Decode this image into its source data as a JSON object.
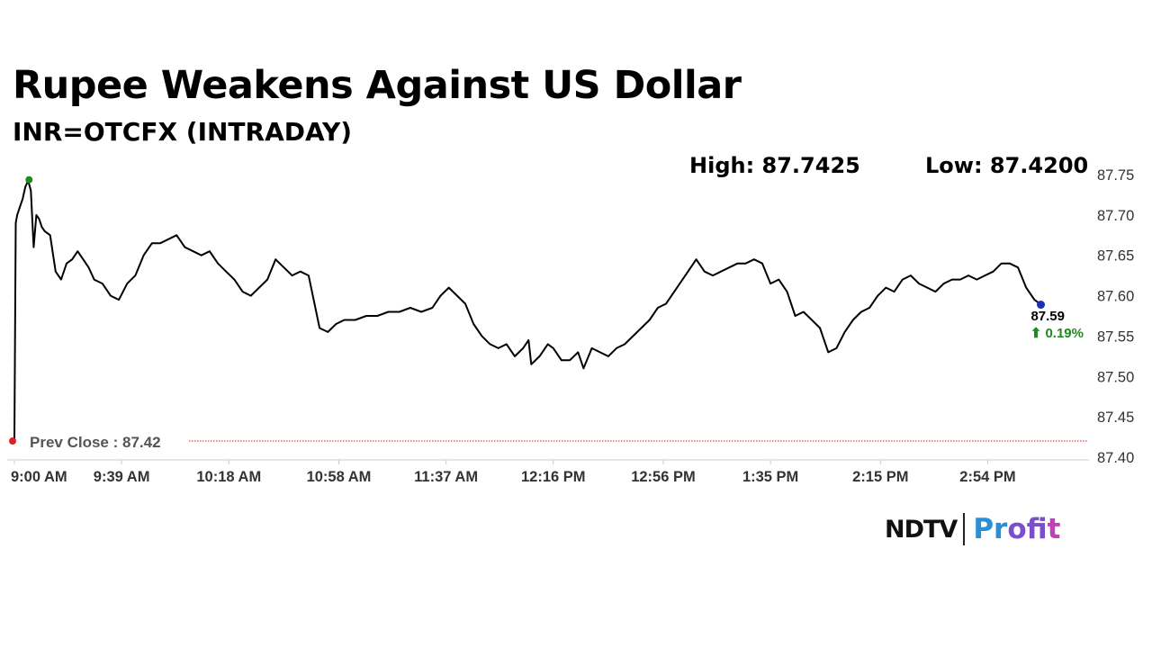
{
  "header": {
    "title": "Rupee Weakens Against US Dollar",
    "subtitle": "INR=OTCFX (INTRADAY)",
    "high_text": "High: 87.7425",
    "low_text": "Low: 87.4200"
  },
  "chart_data": {
    "type": "line",
    "ylim": [
      87.4,
      87.75
    ],
    "y_ticks": [
      "87.75",
      "87.70",
      "87.65",
      "87.60",
      "87.55",
      "87.50",
      "87.45",
      "87.40"
    ],
    "x_ticks": [
      "9:00 AM",
      "9:39 AM",
      "10:18 AM",
      "10:58 AM",
      "11:37 AM",
      "12:16 PM",
      "12:56 PM",
      "1:35 PM",
      "2:15 PM",
      "2:54 PM"
    ],
    "x_tick_minutes": [
      0,
      39,
      78,
      118,
      157,
      196,
      236,
      275,
      315,
      354
    ],
    "series": [
      {
        "points": [
          [
            0,
            87.42
          ],
          [
            0.5,
            87.69
          ],
          [
            1,
            87.7
          ],
          [
            2,
            87.71
          ],
          [
            3,
            87.72
          ],
          [
            4,
            87.735
          ],
          [
            5,
            87.7425
          ],
          [
            6,
            87.73
          ],
          [
            7,
            87.66
          ],
          [
            8,
            87.7
          ],
          [
            9,
            87.695
          ],
          [
            10,
            87.685
          ],
          [
            11,
            87.68
          ],
          [
            13,
            87.675
          ],
          [
            15,
            87.63
          ],
          [
            17,
            87.62
          ],
          [
            19,
            87.64
          ],
          [
            21,
            87.645
          ],
          [
            23,
            87.655
          ],
          [
            25,
            87.645
          ],
          [
            27,
            87.635
          ],
          [
            29,
            87.62
          ],
          [
            32,
            87.615
          ],
          [
            35,
            87.6
          ],
          [
            38,
            87.595
          ],
          [
            41,
            87.615
          ],
          [
            44,
            87.625
          ],
          [
            47,
            87.65
          ],
          [
            50,
            87.665
          ],
          [
            53,
            87.665
          ],
          [
            56,
            87.67
          ],
          [
            59,
            87.675
          ],
          [
            62,
            87.66
          ],
          [
            65,
            87.655
          ],
          [
            68,
            87.65
          ],
          [
            71,
            87.655
          ],
          [
            74,
            87.64
          ],
          [
            77,
            87.63
          ],
          [
            80,
            87.62
          ],
          [
            83,
            87.605
          ],
          [
            86,
            87.6
          ],
          [
            89,
            87.61
          ],
          [
            92,
            87.62
          ],
          [
            95,
            87.645
          ],
          [
            98,
            87.635
          ],
          [
            101,
            87.625
          ],
          [
            104,
            87.63
          ],
          [
            107,
            87.625
          ],
          [
            111,
            87.56
          ],
          [
            114,
            87.555
          ],
          [
            117,
            87.565
          ],
          [
            120,
            87.57
          ],
          [
            124,
            87.57
          ],
          [
            128,
            87.575
          ],
          [
            132,
            87.575
          ],
          [
            136,
            87.58
          ],
          [
            140,
            87.58
          ],
          [
            144,
            87.585
          ],
          [
            148,
            87.58
          ],
          [
            152,
            87.585
          ],
          [
            155,
            87.6
          ],
          [
            158,
            87.61
          ],
          [
            161,
            87.6
          ],
          [
            164,
            87.59
          ],
          [
            167,
            87.565
          ],
          [
            170,
            87.55
          ],
          [
            173,
            87.54
          ],
          [
            176,
            87.535
          ],
          [
            179,
            87.54
          ],
          [
            182,
            87.525
          ],
          [
            185,
            87.535
          ],
          [
            187,
            87.545
          ],
          [
            188,
            87.515
          ],
          [
            191,
            87.525
          ],
          [
            194,
            87.54
          ],
          [
            196,
            87.535
          ],
          [
            199,
            87.52
          ],
          [
            202,
            87.52
          ],
          [
            205,
            87.53
          ],
          [
            207,
            87.51
          ],
          [
            210,
            87.535
          ],
          [
            213,
            87.53
          ],
          [
            216,
            87.525
          ],
          [
            219,
            87.535
          ],
          [
            222,
            87.54
          ],
          [
            225,
            87.55
          ],
          [
            228,
            87.56
          ],
          [
            231,
            87.57
          ],
          [
            234,
            87.585
          ],
          [
            237,
            87.59
          ],
          [
            240,
            87.605
          ],
          [
            243,
            87.62
          ],
          [
            246,
            87.635
          ],
          [
            248,
            87.645
          ],
          [
            251,
            87.63
          ],
          [
            254,
            87.625
          ],
          [
            257,
            87.63
          ],
          [
            260,
            87.635
          ],
          [
            263,
            87.64
          ],
          [
            266,
            87.64
          ],
          [
            269,
            87.645
          ],
          [
            272,
            87.64
          ],
          [
            275,
            87.615
          ],
          [
            278,
            87.62
          ],
          [
            281,
            87.605
          ],
          [
            284,
            87.575
          ],
          [
            287,
            87.58
          ],
          [
            290,
            87.57
          ],
          [
            293,
            87.56
          ],
          [
            296,
            87.53
          ],
          [
            299,
            87.535
          ],
          [
            302,
            87.555
          ],
          [
            305,
            87.57
          ],
          [
            308,
            87.58
          ],
          [
            311,
            87.585
          ],
          [
            314,
            87.6
          ],
          [
            317,
            87.61
          ],
          [
            320,
            87.605
          ],
          [
            323,
            87.62
          ],
          [
            326,
            87.625
          ],
          [
            329,
            87.615
          ],
          [
            332,
            87.61
          ],
          [
            335,
            87.605
          ],
          [
            338,
            87.615
          ],
          [
            341,
            87.62
          ],
          [
            344,
            87.62
          ],
          [
            347,
            87.625
          ],
          [
            350,
            87.62
          ],
          [
            353,
            87.625
          ],
          [
            356,
            87.63
          ],
          [
            359,
            87.64
          ],
          [
            362,
            87.64
          ],
          [
            365,
            87.635
          ],
          [
            368,
            87.61
          ],
          [
            371,
            87.595
          ],
          [
            373,
            87.59
          ]
        ]
      }
    ],
    "high_marker": {
      "x": 5,
      "y": 87.7425,
      "color": "#1f8a1f"
    },
    "low_marker": {
      "x": 0,
      "y": 87.42,
      "color": "#e02020"
    },
    "last_marker": {
      "x": 373,
      "y": 87.59,
      "color": "#1f2fb8"
    },
    "prev_close": {
      "value": 87.42,
      "label": "Prev Close : 87.42",
      "color": "#d42020"
    },
    "last_value_label": "87.59",
    "change_label": "⬆ 0.19%",
    "change_color": "#1f8a1f",
    "line_color": "#000000"
  },
  "branding": {
    "ndtv": "NDTV",
    "profit_parts": [
      "Pr",
      "of",
      "it"
    ]
  }
}
